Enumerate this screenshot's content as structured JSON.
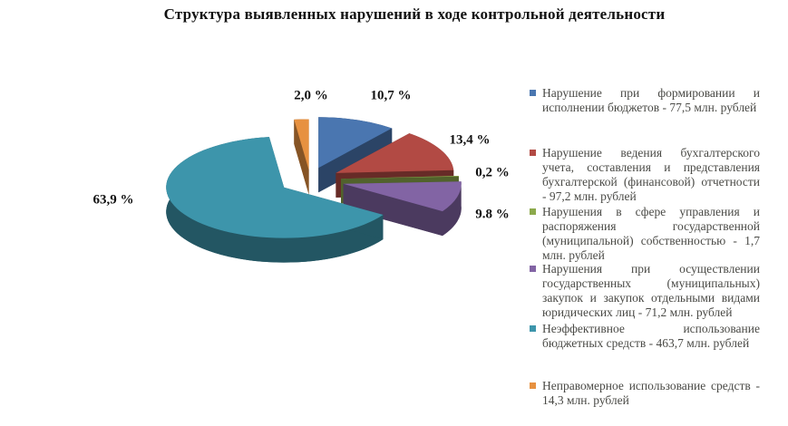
{
  "title": "Структура выявленных нарушений в ходе контрольной деятельности",
  "chart_data": {
    "type": "pie",
    "style": "3d-exploded",
    "title": "Структура выявленных нарушений в ходе контрольной деятельности",
    "legend_position": "right",
    "total_pct": 100,
    "slices": [
      {
        "label": "Нарушение при формировании и исполнении бюджетов - 77,5 млн. рублей",
        "pct": 10.7,
        "pct_label": "10,7 %",
        "amount_mln_rub": "77,5",
        "color": "#4A76B0"
      },
      {
        "label": "Нарушение ведения бухгалтерского учета, составления и представления бухгалтерской (финансовой) отчетности - 97,2 млн. рублей",
        "pct": 13.4,
        "pct_label": "13,4 %",
        "amount_mln_rub": "97,2",
        "color": "#B24A44"
      },
      {
        "label": "Нарушения в сфере управления и распоряжения государственной (муниципальной) собственностью - 1,7 млн. рублей",
        "pct": 0.2,
        "pct_label": "0,2 %",
        "amount_mln_rub": "1,7",
        "color": "#8CA94C"
      },
      {
        "label": "Нарушения при осуществлении государственных (муниципальных) закупок и закупок отдельными видами юридических лиц - 71,2 млн. рублей",
        "pct": 9.8,
        "pct_label": "9.8 %",
        "amount_mln_rub": "71,2",
        "color": "#8264A4"
      },
      {
        "label": "Неэффективное использование бюджетных средств - 463,7 млн. рублей",
        "pct": 63.9,
        "pct_label": "63,9 %",
        "amount_mln_rub": "463,7",
        "color": "#3D95AB"
      },
      {
        "label": "Неправомерное использование средств - 14,3 млн. рублей",
        "pct": 2.0,
        "pct_label": "2,0 %",
        "amount_mln_rub": "14,3",
        "color": "#E79140"
      }
    ]
  }
}
